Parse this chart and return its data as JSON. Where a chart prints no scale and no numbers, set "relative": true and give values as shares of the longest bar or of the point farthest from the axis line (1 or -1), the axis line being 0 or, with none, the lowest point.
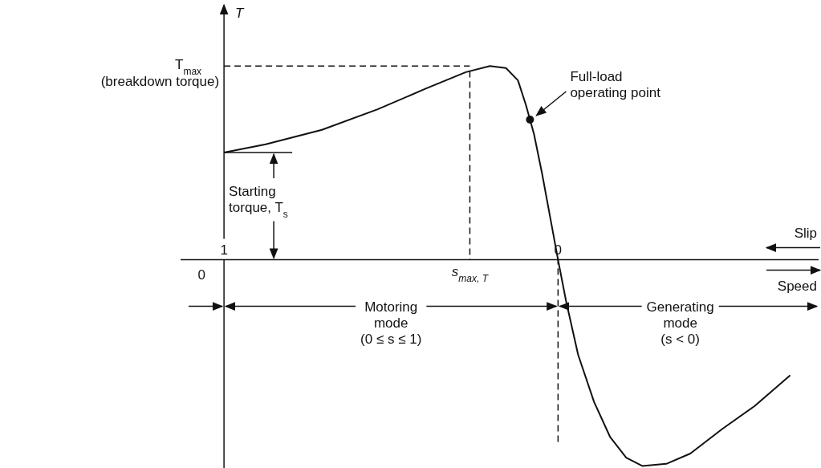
{
  "chart_data": {
    "type": "line",
    "relative": true,
    "ylabel": "T",
    "xlabel": "Slip",
    "xlim": [
      1.13,
      -0.78
    ],
    "xticks": [
      1,
      0
    ],
    "series": [
      {
        "color": "#111111",
        "x": [
          1,
          0.875,
          0.707,
          0.54,
          0.396,
          0.276,
          0.204,
          0.156,
          0.12,
          0.096,
          0.072,
          0.048,
          0.024,
          0,
          -0.024,
          -0.06,
          -0.108,
          -0.156,
          -0.204,
          -0.252,
          -0.324,
          -0.396,
          -0.492,
          -0.588,
          -0.695
        ],
        "values": [
          0.52,
          0.56,
          0.63,
          0.73,
          0.83,
          0.91,
          0.94,
          0.93,
          0.87,
          0.75,
          0.61,
          0.42,
          0.21,
          0,
          -0.2,
          -0.46,
          -0.69,
          -0.86,
          -0.96,
          -1,
          -0.99,
          -0.94,
          -0.82,
          -0.71,
          -0.56
        ]
      },
      {
        "type": "scatter",
        "color": "#111111",
        "x": [
          0.084
        ],
        "values": [
          0.68
        ]
      }
    ],
    "ref_lines": [
      {
        "axis": "y",
        "value": 0.94,
        "label": "T$_{max}$\n(breakdown torque)",
        "line_style": "dashed"
      },
      {
        "axis": "x",
        "value": 0.264,
        "label": "s$_{max, T}$",
        "line_style": "dashed"
      },
      {
        "axis": "x",
        "value": 0,
        "line_style": "dashed"
      },
      {
        "axis": "y",
        "value": 0.52,
        "line_style": "solid"
      }
    ],
    "annotations": [
      "Full-load\noperating point",
      "Starting\ntorque, T$_{s}$",
      "0",
      "Speed",
      "Motoring\nmode\n(0 ≤ s ≤ 1)",
      "Generating\nmode\n(s < 0)"
    ]
  }
}
